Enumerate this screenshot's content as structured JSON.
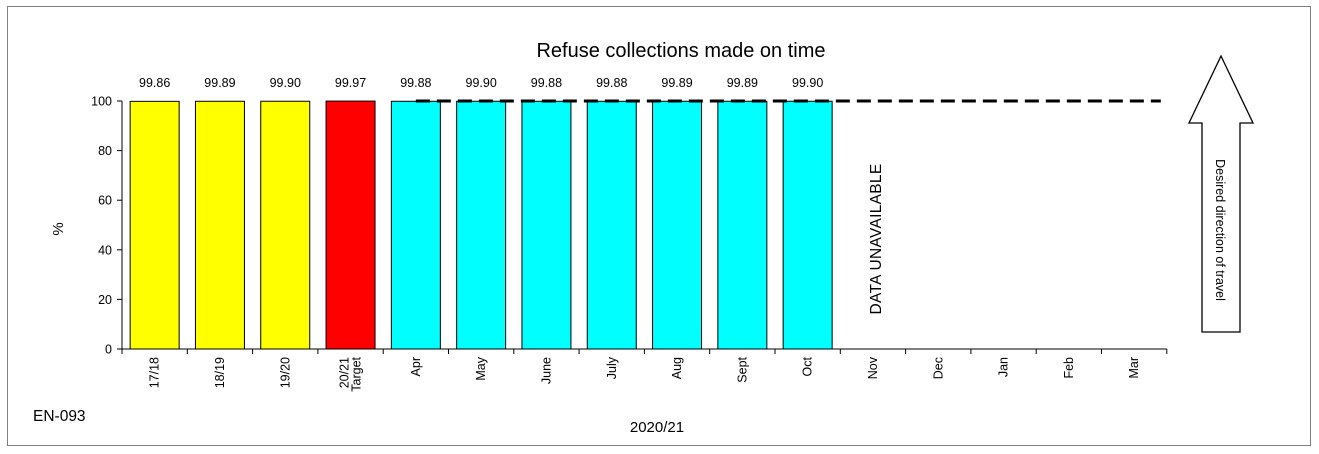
{
  "chart_data": {
    "type": "bar",
    "title": "Refuse collections made on time",
    "ylabel": "%",
    "xlabel": "2020/21",
    "ylim": [
      0,
      100
    ],
    "yticks": [
      0,
      20,
      40,
      60,
      80,
      100
    ],
    "target_line": 100,
    "categories": [
      {
        "label": [
          "17/18"
        ],
        "value": 99.86,
        "value_label": "99.86",
        "color": "#ffff00"
      },
      {
        "label": [
          "18/19"
        ],
        "value": 99.89,
        "value_label": "99.89",
        "color": "#ffff00"
      },
      {
        "label": [
          "19/20"
        ],
        "value": 99.9,
        "value_label": "99.90",
        "color": "#ffff00"
      },
      {
        "label": [
          "Target",
          "20/21"
        ],
        "value": 99.97,
        "value_label": "99.97",
        "color": "#ff0000"
      },
      {
        "label": [
          "Apr"
        ],
        "value": 99.88,
        "value_label": "99.88",
        "color": "#00ffff"
      },
      {
        "label": [
          "May"
        ],
        "value": 99.9,
        "value_label": "99.90",
        "color": "#00ffff"
      },
      {
        "label": [
          "June"
        ],
        "value": 99.88,
        "value_label": "99.88",
        "color": "#00ffff"
      },
      {
        "label": [
          "July"
        ],
        "value": 99.88,
        "value_label": "99.88",
        "color": "#00ffff"
      },
      {
        "label": [
          "Aug"
        ],
        "value": 99.89,
        "value_label": "99.89",
        "color": "#00ffff"
      },
      {
        "label": [
          "Sept"
        ],
        "value": 99.89,
        "value_label": "99.89",
        "color": "#00ffff"
      },
      {
        "label": [
          "Oct"
        ],
        "value": 99.9,
        "value_label": "99.90",
        "color": "#00ffff"
      },
      {
        "label": [
          "Nov"
        ],
        "value": null,
        "value_label": "",
        "color": ""
      },
      {
        "label": [
          "Dec"
        ],
        "value": null,
        "value_label": "",
        "color": ""
      },
      {
        "label": [
          "Jan"
        ],
        "value": null,
        "value_label": "",
        "color": ""
      },
      {
        "label": [
          "Feb"
        ],
        "value": null,
        "value_label": "",
        "color": ""
      },
      {
        "label": [
          "Mar"
        ],
        "value": null,
        "value_label": "",
        "color": ""
      }
    ],
    "annotation": "DATA UNAVAILABLE",
    "direction_label": "Desired direction of travel",
    "code": "EN-093"
  }
}
